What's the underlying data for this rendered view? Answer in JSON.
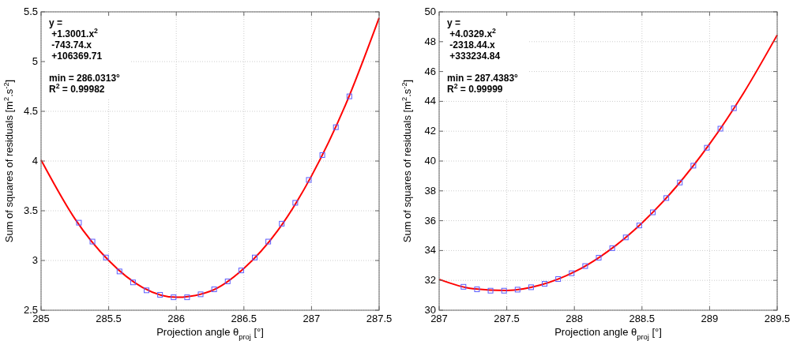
{
  "chart_data": [
    {
      "type": "scatter",
      "xlabel": "Projection angle θ$_{proj}$ [°]",
      "ylabel": "Sum of squares of residuals [m$^{2}$.s$^{-2}$]",
      "xlim": [
        285,
        287.5
      ],
      "xticks": [
        285,
        285.5,
        286,
        286.5,
        287,
        287.5
      ],
      "ylim": [
        2.5,
        5.5
      ],
      "yticks": [
        2.5,
        3,
        3.5,
        4,
        4.5,
        5,
        5.5
      ],
      "grid": true,
      "annotations": [
        "y =",
        " +1.3001.x$^{2}$",
        " -743.74.x",
        " +106369.71",
        "min = 286.0313°",
        "R$^{2}$ = 0.99982"
      ],
      "series": [
        {
          "type": "line",
          "color": "#ff0000",
          "line_style": "solid",
          "x": [
            285,
            285.25,
            285.5,
            285.75,
            286,
            286.25,
            286.5,
            286.75,
            287,
            287.25,
            287.5
          ],
          "values": [
            4.01,
            3.42,
            3.0,
            2.73,
            2.63,
            2.69,
            2.92,
            3.3,
            3.85,
            4.56,
            5.44
          ]
        },
        {
          "color": "#5c5cff",
          "marker": "square",
          "x": [
            285.28,
            285.38,
            285.48,
            285.58,
            285.68,
            285.78,
            285.88,
            285.98,
            286.08,
            286.18,
            286.28,
            286.38,
            286.48,
            286.58,
            286.68,
            286.78,
            286.88,
            286.98,
            287.08,
            287.18,
            287.28
          ],
          "values": [
            3.38,
            3.19,
            3.03,
            2.89,
            2.78,
            2.7,
            2.655,
            2.63,
            2.63,
            2.66,
            2.71,
            2.79,
            2.9,
            3.03,
            3.19,
            3.37,
            3.58,
            3.81,
            4.06,
            4.34,
            4.65
          ]
        }
      ]
    },
    {
      "type": "scatter",
      "xlabel": "Projection angle θ$_{proj}$ [°]",
      "ylabel": "Sum of squares of residuals [m$^{2}$.s$^{-2}$]",
      "xlim": [
        287,
        289.5
      ],
      "xticks": [
        287,
        287.5,
        288,
        288.5,
        289,
        289.5
      ],
      "ylim": [
        30,
        50
      ],
      "yticks": [
        30,
        32,
        34,
        36,
        38,
        40,
        42,
        44,
        46,
        48,
        50
      ],
      "grid": true,
      "annotations": [
        "y =",
        " +4.0329.x$^{2}$",
        " -2318.44.x",
        " +333234.84",
        "min = 287.4383°",
        "R$^{2}$ = 0.99999"
      ],
      "series": [
        {
          "type": "line",
          "color": "#ff0000",
          "line_style": "solid",
          "x": [
            287,
            287.25,
            287.5,
            287.75,
            288,
            288.25,
            288.5,
            288.75,
            289,
            289.25,
            289.5
          ],
          "values": [
            32.07,
            31.44,
            31.32,
            31.69,
            32.57,
            33.96,
            35.85,
            38.24,
            41.14,
            44.54,
            48.45
          ]
        },
        {
          "color": "#5c5cff",
          "marker": "square",
          "x": [
            287.18,
            287.28,
            287.38,
            287.48,
            287.58,
            287.68,
            287.78,
            287.88,
            287.98,
            288.08,
            288.18,
            288.28,
            288.38,
            288.48,
            288.58,
            288.68,
            288.78,
            288.88,
            288.98,
            289.08,
            289.18
          ],
          "values": [
            31.57,
            31.4,
            31.31,
            31.31,
            31.38,
            31.54,
            31.77,
            32.09,
            32.48,
            32.96,
            33.52,
            34.16,
            34.88,
            35.68,
            36.56,
            37.52,
            38.56,
            39.69,
            40.89,
            42.17,
            43.54
          ]
        }
      ]
    }
  ]
}
